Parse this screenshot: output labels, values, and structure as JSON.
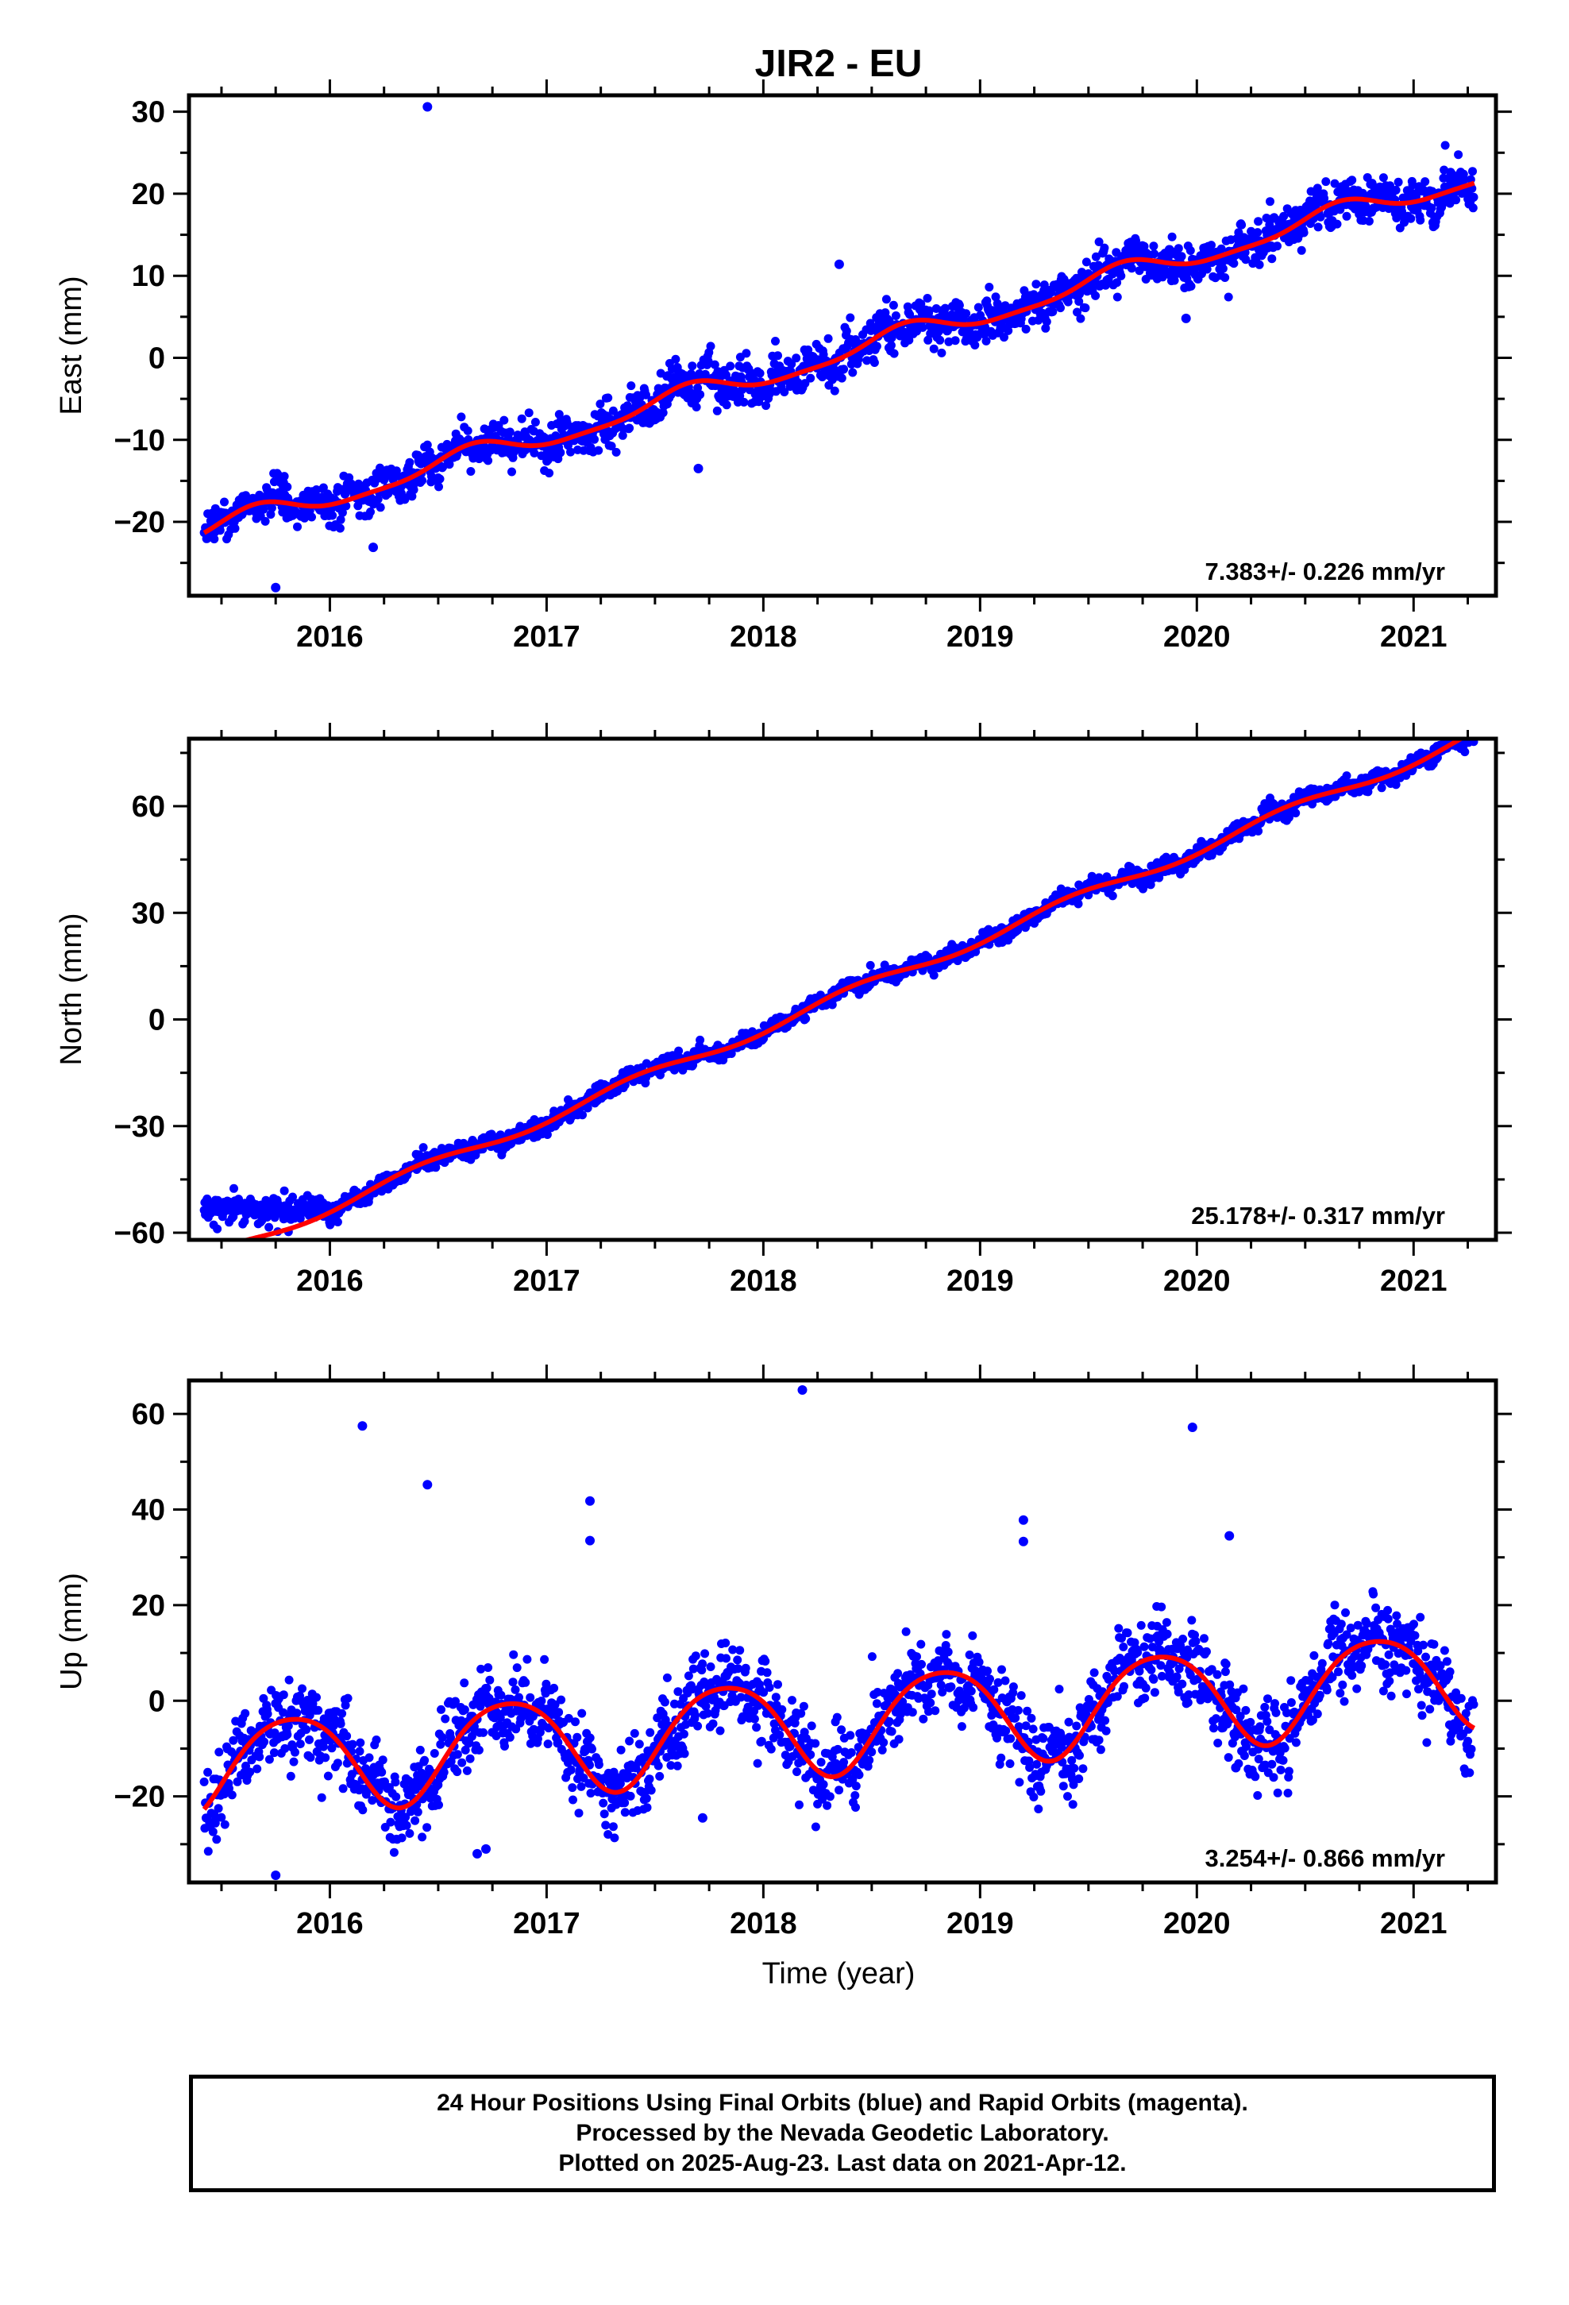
{
  "title": "JIR2 - EU",
  "xlabel": "Time (year)",
  "footer": {
    "line1": "24 Hour Positions Using Final Orbits (blue) and Rapid Orbits (magenta).",
    "line2": "Processed by the Nevada Geodetic Laboratory.",
    "line3": "Plotted on 2025-Aug-23. Last data on 2021-Apr-12."
  },
  "colors": {
    "points": "#0000ff",
    "fit": "#ff0000",
    "frame": "#000000"
  },
  "chart_data": [
    {
      "type": "scatter",
      "ylabel": "East (mm)",
      "rate_label": "7.383+/- 0.226 mm/yr",
      "xlim": [
        2015.35,
        2021.38
      ],
      "ylim": [
        -29,
        32
      ],
      "xticks": [
        2016,
        2017,
        2018,
        2019,
        2020,
        2021
      ],
      "yticks": [
        -20,
        -10,
        0,
        10,
        20,
        30
      ],
      "fit": {
        "a": -21.2,
        "b": 7.383,
        "t0": 2015.42,
        "s1": -1.0,
        "c1": -0.8,
        "s2": 0.3,
        "c2": -0.2
      },
      "data_range": [
        2015.42,
        2021.28
      ],
      "noise": 1.3,
      "outliers": [
        [
          2016.45,
          30.6
        ],
        [
          2018.35,
          11.4
        ],
        [
          2019.95,
          4.8
        ],
        [
          2016.2,
          -23.1
        ],
        [
          2017.7,
          -13.5
        ],
        [
          2015.75,
          -28.0
        ]
      ]
    },
    {
      "type": "scatter",
      "ylabel": "North (mm)",
      "rate_label": "25.178+/- 0.317 mm/yr",
      "xlim": [
        2015.35,
        2021.38
      ],
      "ylim": [
        -62,
        79
      ],
      "xticks": [
        2016,
        2017,
        2018,
        2019,
        2020,
        2021
      ],
      "yticks": [
        -60,
        -30,
        0,
        30,
        60
      ],
      "fit": {
        "a": -67.5,
        "b": 25.178,
        "t0": 2015.42,
        "s1": 0.8,
        "c1": -1.4,
        "s2": 0.0,
        "c2": 0.0
      },
      "data_range": [
        2015.42,
        2021.28
      ],
      "noise": 1.2,
      "early_plateau": {
        "until": 2016.05,
        "level": -53.5
      },
      "outliers": []
    },
    {
      "type": "scatter",
      "ylabel": "Up (mm)",
      "rate_label": "3.254+/- 0.866 mm/yr",
      "xlim": [
        2015.35,
        2021.38
      ],
      "ylim": [
        -38,
        67
      ],
      "xticks": [
        2016,
        2017,
        2018,
        2019,
        2020,
        2021
      ],
      "yticks": [
        -20,
        0,
        20,
        40,
        60
      ],
      "fit": {
        "a": -14.0,
        "b": 3.254,
        "t0": 2015.42,
        "s1": -9.0,
        "c1": 4.5,
        "s2": 1.0,
        "c2": 0.8
      },
      "data_range": [
        2015.42,
        2021.28
      ],
      "noise": 4.2,
      "outliers": [
        [
          2016.15,
          57.5
        ],
        [
          2016.45,
          45.2
        ],
        [
          2017.2,
          41.8
        ],
        [
          2017.2,
          33.5
        ],
        [
          2018.18,
          65.0
        ],
        [
          2019.2,
          37.8
        ],
        [
          2019.2,
          33.3
        ],
        [
          2019.98,
          57.2
        ],
        [
          2020.15,
          34.5
        ],
        [
          2016.72,
          -31.0
        ],
        [
          2016.68,
          -32.0
        ],
        [
          2017.72,
          -24.5
        ],
        [
          2015.75,
          -36.5
        ],
        [
          2020.18,
          -14.0
        ]
      ]
    }
  ]
}
